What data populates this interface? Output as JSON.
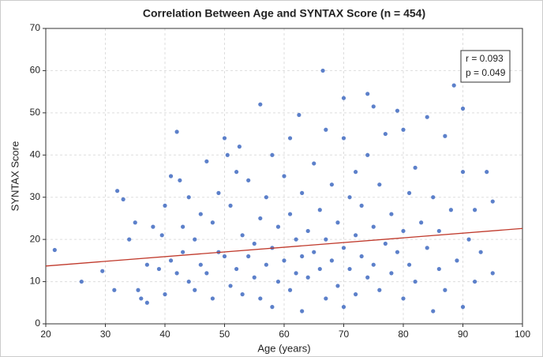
{
  "chart_data": {
    "type": "scatter",
    "title": "Correlation Between Age and SYNTAX Score (n = 454)",
    "x_label": "Age (years)",
    "y_label": "SYNTAX Score",
    "annotations": [
      "r = 0.093",
      "p = 0.049"
    ],
    "xlim": [
      20,
      100
    ],
    "xticks": [
      20,
      30,
      40,
      50,
      60,
      70,
      80,
      90,
      100
    ],
    "ylim": [
      0,
      70
    ],
    "yticks": [
      0,
      10,
      20,
      30,
      40,
      50,
      60,
      70
    ],
    "grid": true,
    "series": [
      {
        "color": "#4a72c4",
        "x": [
          21.5,
          26,
          29.5,
          31.5,
          32,
          33,
          34,
          35,
          35.5,
          36,
          37,
          37,
          38,
          39,
          39.5,
          40,
          40,
          41,
          41,
          42,
          42,
          42.5,
          43,
          43,
          44,
          44,
          45,
          45,
          46,
          46,
          47,
          47,
          48,
          48,
          49,
          49,
          50,
          50,
          50.5,
          51,
          51,
          52,
          52,
          52.5,
          53,
          53,
          54,
          54,
          55,
          55,
          56,
          56,
          56,
          57,
          57,
          58,
          58,
          58,
          59,
          59,
          60,
          60,
          61,
          61,
          61,
          62,
          62,
          62.5,
          63,
          63,
          63,
          64,
          64,
          65,
          65,
          66,
          66,
          66.5,
          67,
          67,
          67,
          68,
          68,
          69,
          69,
          70,
          70,
          70,
          70,
          71,
          71,
          72,
          72,
          72,
          73,
          73,
          74,
          74,
          74,
          75,
          75,
          75,
          76,
          76,
          77,
          77,
          78,
          78,
          79,
          79,
          80,
          80,
          80,
          81,
          81,
          82,
          82,
          83,
          84,
          84,
          85,
          85,
          86,
          86,
          87,
          87,
          88,
          88.5,
          89,
          90,
          90,
          90,
          91,
          92,
          92,
          93,
          94,
          95,
          95
        ],
        "y": [
          17.5,
          10,
          12.5,
          8,
          31.5,
          29.5,
          20,
          24,
          8,
          6,
          5,
          14,
          23,
          13,
          21,
          28,
          7,
          35,
          15,
          12,
          45.5,
          34,
          23,
          17,
          10,
          30,
          20,
          8,
          14,
          26,
          38.5,
          12,
          24,
          6,
          31,
          17,
          44,
          16,
          40,
          28,
          9,
          36,
          13,
          42,
          21,
          7,
          34,
          16,
          19,
          11,
          52,
          25,
          6,
          30,
          14,
          40,
          18,
          4,
          23,
          10,
          35,
          15,
          44,
          26,
          8,
          20,
          12,
          49.5,
          31,
          16,
          3,
          22,
          11,
          38,
          17,
          27,
          13,
          60,
          46,
          20,
          6,
          33,
          15,
          24,
          9,
          53.5,
          44,
          18,
          4,
          30,
          13,
          36,
          21,
          7,
          16,
          28,
          54.5,
          11,
          40,
          51.5,
          23,
          14,
          33,
          8,
          19,
          45,
          26,
          12,
          50.5,
          17,
          46,
          22,
          6,
          31,
          14,
          37,
          10,
          24,
          18,
          49,
          30,
          3,
          22,
          13,
          44.5,
          8,
          27,
          56.5,
          15,
          51,
          36,
          4,
          20,
          27,
          10,
          17,
          36,
          29,
          12
        ]
      }
    ],
    "trendline": {
      "color": "#c0392b",
      "x": [
        20,
        100
      ],
      "y": [
        13.7,
        22.6
      ]
    }
  }
}
